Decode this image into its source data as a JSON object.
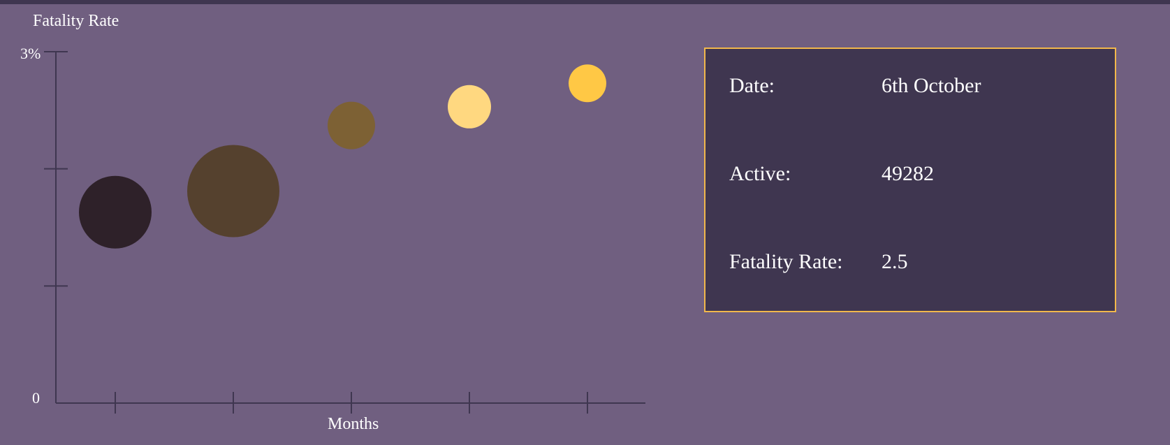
{
  "chart_data": {
    "type": "scatter",
    "title": "Fatality Rate",
    "xlabel": "Months",
    "ylabel": "",
    "y_tick_labels": {
      "top": "3%",
      "bottom": "0"
    },
    "ylim": [
      0,
      3
    ],
    "grid": false,
    "points": [
      {
        "x": 1,
        "y": 1.63,
        "r": 52,
        "color": "#2e2129"
      },
      {
        "x": 2,
        "y": 1.81,
        "r": 66,
        "color": "#55412e"
      },
      {
        "x": 3,
        "y": 2.37,
        "r": 34,
        "color": "#7d6134"
      },
      {
        "x": 4,
        "y": 2.53,
        "r": 31,
        "color": "#ffd880"
      },
      {
        "x": 5,
        "y": 2.73,
        "r": 27,
        "color": "#ffc845"
      }
    ]
  },
  "tooltip": {
    "date_label": "Date:",
    "date_value": "6th October",
    "active_label": "Active:",
    "active_value": "49282",
    "fatality_label": "Fatality Rate:",
    "fatality_value": "2.5"
  },
  "colors": {
    "background": "#705f80",
    "axis": "#3f3650",
    "panel_bg": "#3f3650",
    "panel_border": "#f2b84b"
  }
}
